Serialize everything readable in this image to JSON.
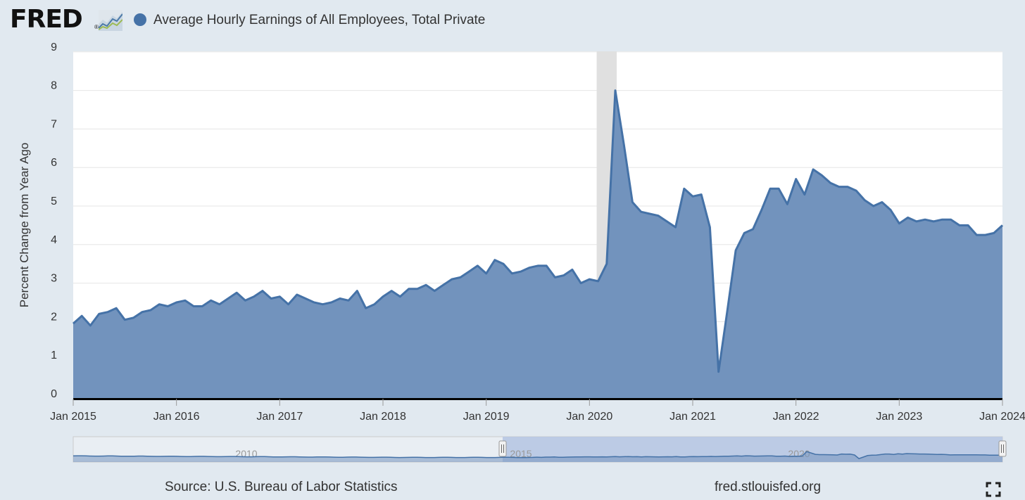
{
  "header": {
    "logo_text": "FRED",
    "logo_reg": "®",
    "logo_icon": "line-chart-icon",
    "series_title": "Average Hourly Earnings of All Employees, Total Private"
  },
  "footer": {
    "source": "Source: U.S. Bureau of Labor Statistics",
    "url": "fred.stlouisfed.org",
    "fullscreen_icon": "fullscreen-icon"
  },
  "colors": {
    "series": "#4572a7",
    "fill": "#7293bd",
    "recession": "#e0e0e0",
    "page_bg": "#e1e9f0"
  },
  "chart_data": {
    "type": "area",
    "title": "Average Hourly Earnings of All Employees, Total Private",
    "ylabel": "Percent Change from Year Ago",
    "xlabel": "",
    "ylim": [
      0,
      9
    ],
    "yticks": [
      "0",
      "1",
      "2",
      "3",
      "4",
      "5",
      "6",
      "7",
      "8",
      "9"
    ],
    "xlim": [
      "2015-01",
      "2024-01"
    ],
    "xticks": [
      "Jan 2015",
      "Jan 2016",
      "Jan 2017",
      "Jan 2018",
      "Jan 2019",
      "Jan 2020",
      "Jan 2021",
      "Jan 2022",
      "Jan 2023",
      "Jan 2024"
    ],
    "grid": true,
    "recession_shading": [
      "2020-02",
      "2020-04"
    ],
    "series": [
      {
        "name": "Average Hourly Earnings of All Employees, Total Private",
        "x_start": "2015-01",
        "frequency": "monthly",
        "values": [
          1.95,
          2.15,
          1.9,
          2.2,
          2.25,
          2.35,
          2.05,
          2.1,
          2.25,
          2.3,
          2.45,
          2.4,
          2.5,
          2.55,
          2.4,
          2.4,
          2.55,
          2.45,
          2.6,
          2.75,
          2.55,
          2.65,
          2.8,
          2.6,
          2.65,
          2.45,
          2.7,
          2.6,
          2.5,
          2.45,
          2.5,
          2.6,
          2.55,
          2.8,
          2.35,
          2.45,
          2.65,
          2.8,
          2.65,
          2.85,
          2.85,
          2.95,
          2.8,
          2.95,
          3.1,
          3.15,
          3.3,
          3.45,
          3.25,
          3.6,
          3.5,
          3.25,
          3.3,
          3.4,
          3.45,
          3.45,
          3.15,
          3.2,
          3.35,
          3.0,
          3.1,
          3.05,
          3.5,
          8.0,
          6.6,
          5.1,
          4.85,
          4.8,
          4.75,
          4.6,
          4.45,
          5.45,
          5.25,
          5.3,
          4.45,
          0.7,
          2.25,
          3.85,
          4.3,
          4.4,
          4.9,
          5.45,
          5.45,
          5.05,
          5.7,
          5.3,
          5.95,
          5.8,
          5.6,
          5.5,
          5.5,
          5.4,
          5.15,
          5.0,
          5.1,
          4.9,
          4.55,
          4.7,
          4.6,
          4.65,
          4.6,
          4.65,
          4.65,
          4.5,
          4.5,
          4.25,
          4.25,
          4.3,
          4.5
        ]
      }
    ]
  },
  "navigator": {
    "ticks": [
      "2010",
      "2015",
      "2020"
    ]
  }
}
